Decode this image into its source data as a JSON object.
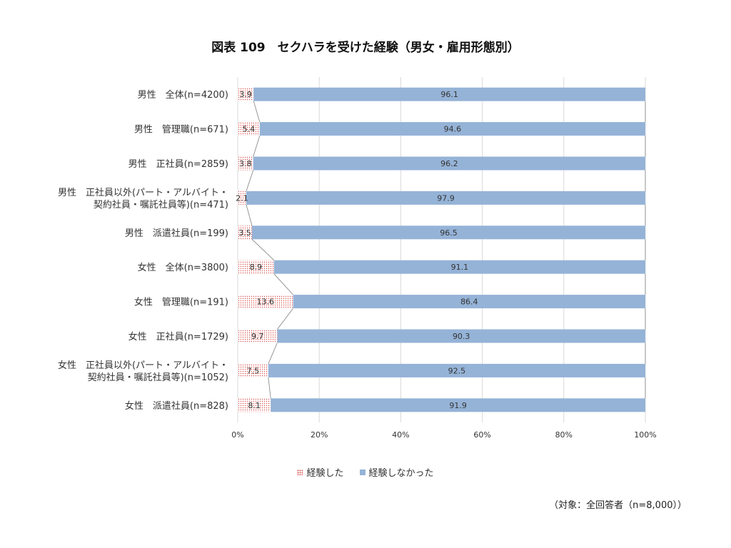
{
  "chart_data": {
    "type": "bar",
    "orientation": "horizontal",
    "stacked": "percent",
    "title": "図表 109　セクハラを受けた経験（男女・雇用形態別）",
    "categories": [
      [
        "男性　全体(n=4200)"
      ],
      [
        "男性　管理職(n=671)"
      ],
      [
        "男性　正社員(n=2859)"
      ],
      [
        "男性　正社員以外(パート・アルバイト・",
        "契約社員・嘱託社員等)(n=471)"
      ],
      [
        "男性　派遣社員(n=199)"
      ],
      [
        "女性　全体(n=3800)"
      ],
      [
        "女性　管理職(n=191)"
      ],
      [
        "女性　正社員(n=1729)"
      ],
      [
        "女性　正社員以外(パート・アルバイト・",
        "契約社員・嘱託社員等)(n=1052)"
      ],
      [
        "女性　派遣社員(n=828)"
      ]
    ],
    "series": [
      {
        "name": "経験した",
        "values": [
          3.9,
          5.4,
          3.8,
          2.1,
          3.5,
          8.9,
          13.6,
          9.7,
          7.5,
          8.1
        ],
        "color": "#d9534f",
        "pattern": "dots"
      },
      {
        "name": "経験しなかった",
        "values": [
          96.1,
          94.6,
          96.2,
          97.9,
          96.5,
          91.1,
          86.4,
          90.3,
          92.5,
          91.9
        ],
        "color": "#95b3d7"
      }
    ],
    "xlim": [
      0,
      100
    ],
    "xticks": [
      "0%",
      "20%",
      "40%",
      "60%",
      "80%",
      "100%"
    ],
    "grid": true,
    "legend": "bottom",
    "series_lines": true
  },
  "note": "（対象：全回答者（n=8,000））"
}
